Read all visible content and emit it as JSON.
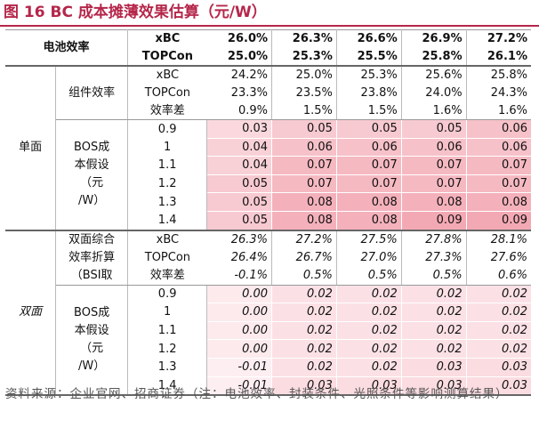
{
  "title": "图 16 BC 成本摊薄效果估算（元/W）",
  "header": {
    "label": "电池效率",
    "rows": [
      {
        "name": "xBC",
        "values": [
          "26.0%",
          "26.3%",
          "26.6%",
          "26.9%",
          "27.2%"
        ]
      },
      {
        "name": "TOPCon",
        "values": [
          "25.0%",
          "25.3%",
          "25.5%",
          "25.8%",
          "26.1%"
        ]
      }
    ]
  },
  "single": {
    "label": "单面",
    "module_label": "组件效率",
    "module_rows": [
      {
        "name": "xBC",
        "values": [
          "24.2%",
          "25.0%",
          "25.3%",
          "25.6%",
          "25.8%"
        ]
      },
      {
        "name": "TOPCon",
        "values": [
          "23.3%",
          "23.5%",
          "23.8%",
          "24.0%",
          "24.3%"
        ]
      },
      {
        "name": "效率差",
        "values": [
          "0.9%",
          "1.5%",
          "1.5%",
          "1.6%",
          "1.6%"
        ]
      }
    ],
    "bos_label": [
      "BOS成",
      "本假设",
      "（元",
      "/W）"
    ],
    "bos_rows": [
      {
        "bos": "0.9",
        "values": [
          "0.03",
          "0.05",
          "0.05",
          "0.05",
          "0.06"
        ]
      },
      {
        "bos": "1",
        "values": [
          "0.04",
          "0.06",
          "0.06",
          "0.06",
          "0.06"
        ]
      },
      {
        "bos": "1.1",
        "values": [
          "0.04",
          "0.07",
          "0.07",
          "0.07",
          "0.07"
        ]
      },
      {
        "bos": "1.2",
        "values": [
          "0.05",
          "0.07",
          "0.07",
          "0.07",
          "0.07"
        ]
      },
      {
        "bos": "1.3",
        "values": [
          "0.05",
          "0.08",
          "0.08",
          "0.08",
          "0.08"
        ]
      },
      {
        "bos": "1.4",
        "values": [
          "0.05",
          "0.08",
          "0.08",
          "0.09",
          "0.09"
        ]
      }
    ]
  },
  "double": {
    "label": "双面",
    "module_label": [
      "双面综合",
      "效率折算",
      "（BSI取"
    ],
    "module_rows": [
      {
        "name": "xBC",
        "values": [
          "26.3%",
          "27.2%",
          "27.5%",
          "27.8%",
          "28.1%"
        ]
      },
      {
        "name": "TOPCon",
        "values": [
          "26.4%",
          "26.7%",
          "27.0%",
          "27.3%",
          "27.6%"
        ]
      },
      {
        "name": "效率差",
        "values": [
          "-0.1%",
          "0.5%",
          "0.5%",
          "0.5%",
          "0.6%"
        ]
      }
    ],
    "bos_label": [
      "BOS成",
      "本假设",
      "（元",
      "/W）"
    ],
    "bos_rows": [
      {
        "bos": "0.9",
        "values": [
          "0.00",
          "0.02",
          "0.02",
          "0.02",
          "0.02"
        ]
      },
      {
        "bos": "1",
        "values": [
          "0.00",
          "0.02",
          "0.02",
          "0.02",
          "0.02"
        ]
      },
      {
        "bos": "1.1",
        "values": [
          "0.00",
          "0.02",
          "0.02",
          "0.02",
          "0.02"
        ]
      },
      {
        "bos": "1.2",
        "values": [
          "0.00",
          "0.02",
          "0.02",
          "0.02",
          "0.02"
        ]
      },
      {
        "bos": "1.3",
        "values": [
          "-0.01",
          "0.02",
          "0.02",
          "0.03",
          "0.03"
        ]
      },
      {
        "bos": "1.4",
        "values": [
          "-0.01",
          "0.03",
          "0.03",
          "0.03",
          "0.03"
        ]
      }
    ]
  },
  "source": "资料来源：企业官网、招商证券（注：电池效率、封装条件、光照条件等影响测算结果）",
  "colors": {
    "accent": "#b5264a",
    "heat_low": "#fdf2f4",
    "heat_high": "#f3a9b4"
  }
}
